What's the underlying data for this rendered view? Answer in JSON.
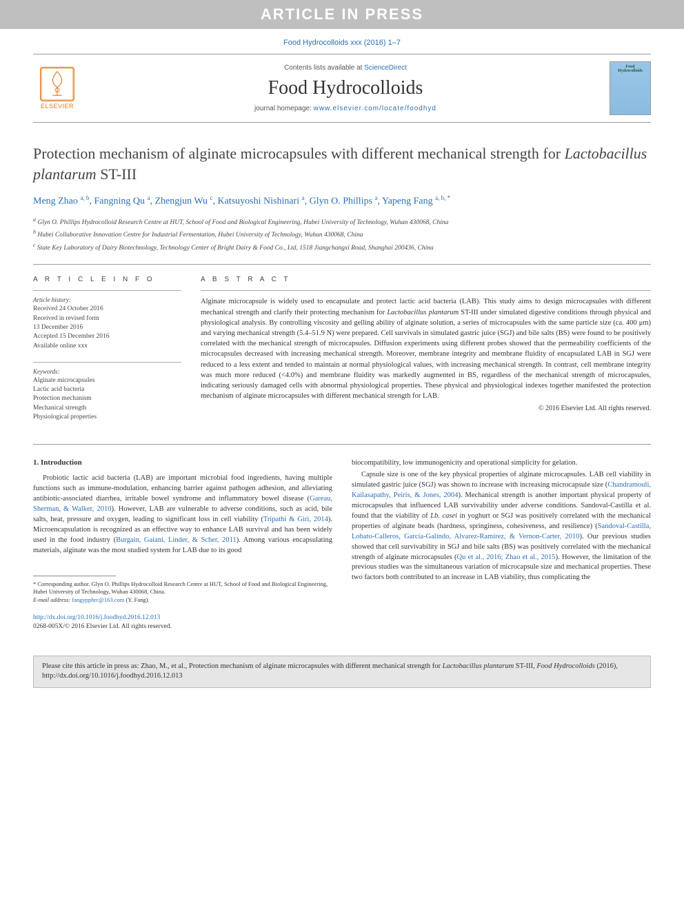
{
  "banner": {
    "text": "ARTICLE IN PRESS"
  },
  "journal_ref": "Food Hydrocolloids xxx (2016) 1–7",
  "header": {
    "contents_prefix": "Contents lists available at ",
    "contents_link": "ScienceDirect",
    "journal_name": "Food Hydrocolloids",
    "homepage_prefix": "journal homepage: ",
    "homepage_url": "www.elsevier.com/locate/foodhyd",
    "publisher_label": "ELSEVIER",
    "cover_line1": "Food",
    "cover_line2": "Hydrocolloids"
  },
  "article": {
    "title_pre": "Protection mechanism of alginate microcapsules with different mechanical strength for ",
    "title_italic": "Lactobacillus plantarum",
    "title_post": " ST-III",
    "authors_html": "Meng Zhao <sup>a, b</sup>, Fangning Qu <sup>a</sup>, Zhengjun Wu <sup>c</sup>, Katsuyoshi Nishinari <sup>a</sup>, Glyn O. Phillips <sup>a</sup>, Yapeng Fang <sup>a, b, *</sup>",
    "affiliations": [
      "a Glyn O. Phillips Hydrocolloid Research Centre at HUT, School of Food and Biological Engineering, Hubei University of Technology, Wuhan 430068, China",
      "b Hubei Collaborative Innovation Centre for Industrial Fermentation, Hubei University of Technology, Wuhan 430068, China",
      "c State Key Laboratory of Dairy Biotechnology, Technology Center of Bright Dairy & Food Co., Ltd, 1518 Jiangchangxi Road, Shanghai 200436, China"
    ]
  },
  "info": {
    "heading": "A R T I C L E   I N F O",
    "history_label": "Article history:",
    "history": [
      "Received 24 October 2016",
      "Received in revised form",
      "13 December 2016",
      "Accepted 15 December 2016",
      "Available online xxx"
    ],
    "keywords_label": "Keywords:",
    "keywords": [
      "Alginate microcapsules",
      "Lactic acid bacteria",
      "Protection mechanism",
      "Mechanical strength",
      "Physiological properties"
    ]
  },
  "abstract": {
    "heading": "A B S T R A C T",
    "text_pre": "Alginate microcapsule is widely used to encapsulate and protect lactic acid bacteria (LAB). This study aims to design microcapsules with different mechanical strength and clarify their protecting mechanism for ",
    "text_italic": "Lactobacillus plantarum",
    "text_post": " ST-III under simulated digestive conditions through physical and physiological analysis. By controlling viscosity and gelling ability of alginate solution, a series of microcapsules with the same particle size (ca. 400 μm) and varying mechanical strength (5.4–51.9 N) were prepared. Cell survivals in simulated gastric juice (SGJ) and bile salts (BS) were found to be positively correlated with the mechanical strength of microcapsules. Diffusion experiments using different probes showed that the permeability coefficients of the microcapsules decreased with increasing mechanical strength. Moreover, membrane integrity and membrane fluidity of encapsulated LAB in SGJ were reduced to a less extent and tended to maintain at normal physiological values, with increasing mechanical strength. In contrast, cell membrane integrity was much more reduced (<4.0%) and membrane fluidity was markedly augmented in BS, regardless of the mechanical strength of microcapsules, indicating seriously damaged cells with abnormal physiological properties. These physical and physiological indexes together manifested the protection mechanism of alginate microcapsules with different mechanical strength for LAB.",
    "copyright": "© 2016 Elsevier Ltd. All rights reserved."
  },
  "body": {
    "section_heading": "1. Introduction",
    "col1_p1_pre": "Probiotic lactic acid bacteria (LAB) are important microbial food ingredients, having multiple functions such as immune-modulation, enhancing barrier against pathogen adhesion, and alleviating antibiotic-associated diarrhea, irritable bowel syndrome and inflammatory bowel disease (",
    "ref1": "Gareau, Sherman, & Walker, 2010",
    "col1_p1_mid1": "). However, LAB are vulnerable to adverse conditions, such as acid, bile salts, heat, pressure and oxygen, leading to significant loss in cell viability (",
    "ref2": "Tripathi & Giri, 2014",
    "col1_p1_mid2": "). Microencapsulation is recognized as an effective way to enhance LAB survival and has been widely used in the food industry (",
    "ref3": "Burgain, Gaiani, Linder, & Scher, 2011",
    "col1_p1_post": "). Among various encapsulating materials, alginate was the most studied system for LAB due to its good",
    "col2_p1": "biocompatibility, low immunogenicity and operational simplicity for gelation.",
    "col2_p2_pre": "Capsule size is one of the key physical properties of alginate microcapsules. LAB cell viability in simulated gastric juice (SGJ) was shown to increase with increasing microcapsule size (",
    "ref4": "Chandramouli, Kailasapathy, Peiris, & Jones, 2004",
    "col2_p2_mid1": "). Mechanical strength is another important physical property of microcapsules that influenced LAB survivability under adverse conditions. Sandoval-Castilla et al. found that the viability of ",
    "col2_italic": "Lb. casei",
    "col2_p2_mid2": " in yoghurt or SGJ was positively correlated with the mechanical properties of alginate beads (hardness, springiness, cohesiveness, and resilience) (",
    "ref5": "Sandoval-Castilla, Lobato-Calleros, García-Galindo, Alvarez-Ramírez, & Vernon-Carter, 2010",
    "col2_p2_mid3": "). Our previous studies showed that cell survivability in SGJ and bile salts (BS) was positively correlated with the mechanical strength of alginate microcapsules (",
    "ref6": "Qu et al., 2016; Zhao et al., 2015",
    "col2_p2_post": "). However, the limitation of the previous studies was the simultaneous variation of microcapsule size and mechanical properties. These two factors both contributed to an increase in LAB viability, thus complicating the"
  },
  "footnote": {
    "corresponding": "* Corresponding author. Glyn O. Phillips Hydrocolloid Research Centre at HUT, School of Food and Biological Engineering, Hubei University of Technology, Wuhan 430068, China.",
    "email_label": "E-mail address: ",
    "email": "fangypphrc@163.com",
    "email_who": " (Y. Fang)."
  },
  "doi": {
    "url": "http://dx.doi.org/10.1016/j.foodhyd.2016.12.013",
    "line2": "0268-005X/© 2016 Elsevier Ltd. All rights reserved."
  },
  "citebox": {
    "pre": "Please cite this article in press as: Zhao, M., et al., Protection mechanism of alginate microcapsules with different mechanical strength for ",
    "italic1": "Lactobacillus plantarum",
    "mid": " ST-III, ",
    "italic2": "Food Hydrocolloids",
    "post": " (2016), http://dx.doi.org/10.1016/j.foodhyd.2016.12.013"
  },
  "colors": {
    "banner_bg": "#bfbfbf",
    "link": "#2a6eb5",
    "elsevier": "#e67a1f",
    "citebox_bg": "#e6e6e6"
  }
}
